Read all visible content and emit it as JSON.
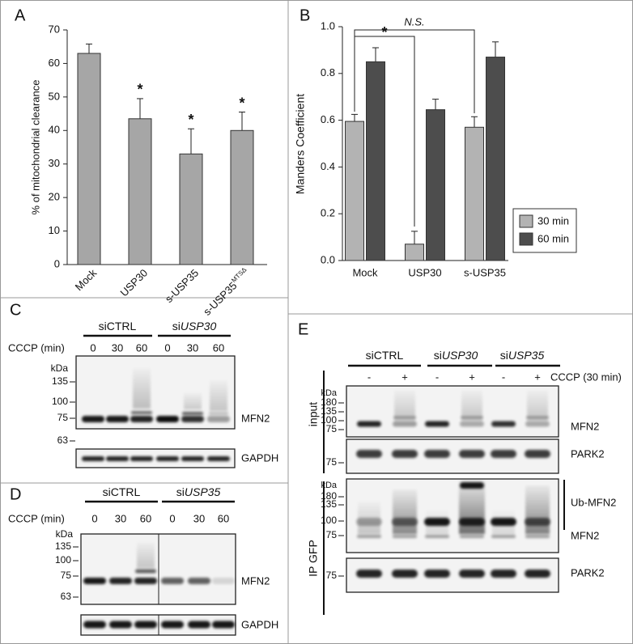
{
  "chart_data": [
    {
      "type": "bar",
      "y_label": "% of mitochondrial clearance",
      "categories": [
        "Mock",
        "USP30",
        "s-USP35",
        "s-USP35"
      ],
      "category_superscripts": [
        null,
        null,
        null,
        "MTSΔ"
      ],
      "values": [
        63,
        43.5,
        33,
        40
      ],
      "errors": [
        2.8,
        6,
        7.5,
        5.5
      ],
      "significance": [
        null,
        "*",
        "*",
        "*"
      ],
      "color": "#a6a6a6",
      "ylim": [
        0,
        70
      ],
      "yticks": [
        0,
        10,
        20,
        30,
        40,
        50,
        60,
        70
      ]
    },
    {
      "type": "grouped_bar",
      "y_label": "Manders Coefficient",
      "categories": [
        "Mock",
        "USP30",
        "s-USP35"
      ],
      "series": [
        {
          "name": "30 min",
          "color": "#b3b3b3",
          "values": [
            0.595,
            0.07,
            0.57
          ],
          "errors": [
            0.03,
            0.055,
            0.045
          ]
        },
        {
          "name": "60 min",
          "color": "#4d4d4d",
          "values": [
            0.85,
            0.645,
            0.87
          ],
          "errors": [
            0.06,
            0.045,
            0.065
          ]
        }
      ],
      "ylim": [
        0,
        1
      ],
      "yticks": [
        {
          "value": 0,
          "label": "0.0"
        },
        0.2,
        0.4,
        0.6,
        0.8,
        {
          "value": 1,
          "label": "1.0"
        }
      ],
      "legend": "lower right",
      "annotations": [
        "*",
        "N.S."
      ]
    }
  ],
  "panel_letters": [
    "A",
    "B",
    "C",
    "D",
    "E"
  ],
  "blot_c": {
    "groups": [
      {
        "prefix": "siCTRL"
      },
      {
        "prefix": "si",
        "gene": "USP30"
      }
    ],
    "row_label": "CCCP (min)",
    "lanes": [
      "0",
      "30",
      "60",
      "0",
      "30",
      "60"
    ],
    "kda": "kDa",
    "markers": [
      "135",
      "100",
      "75",
      "63"
    ],
    "labels": [
      "MFN2",
      "GAPDH"
    ]
  },
  "blot_d": {
    "groups": [
      {
        "prefix": "siCTRL"
      },
      {
        "prefix": "si",
        "gene": "USP35"
      }
    ],
    "row_label": "CCCP (min)",
    "lanes": [
      "0",
      "30",
      "60",
      "0",
      "30",
      "60"
    ],
    "kda": "kDa",
    "markers": [
      "135",
      "100",
      "75",
      "63"
    ],
    "labels": [
      "MFN2",
      "GAPDH"
    ]
  },
  "blot_e": {
    "groups": [
      {
        "prefix": "siCTRL"
      },
      {
        "prefix": "si",
        "gene": "USP30"
      },
      {
        "prefix": "si",
        "gene": "USP35"
      }
    ],
    "row_label": "CCCP (30 min)",
    "lanes": [
      "-",
      "+",
      "-",
      "+",
      "-",
      "+"
    ],
    "kda": "kDa",
    "sections": [
      "input",
      "IP GFP"
    ],
    "blots": [
      {
        "markers": [
          "180",
          "135",
          "100",
          "75"
        ],
        "labels": [
          "MFN2"
        ]
      },
      {
        "markers": [
          "75"
        ],
        "labels": [
          "PARK2"
        ]
      },
      {
        "markers": [
          "180",
          "135",
          "100",
          "75"
        ],
        "labels": [
          "Ub-MFN2",
          "MFN2"
        ]
      },
      {
        "markers": [
          "75"
        ],
        "labels": [
          "PARK2"
        ]
      }
    ]
  }
}
